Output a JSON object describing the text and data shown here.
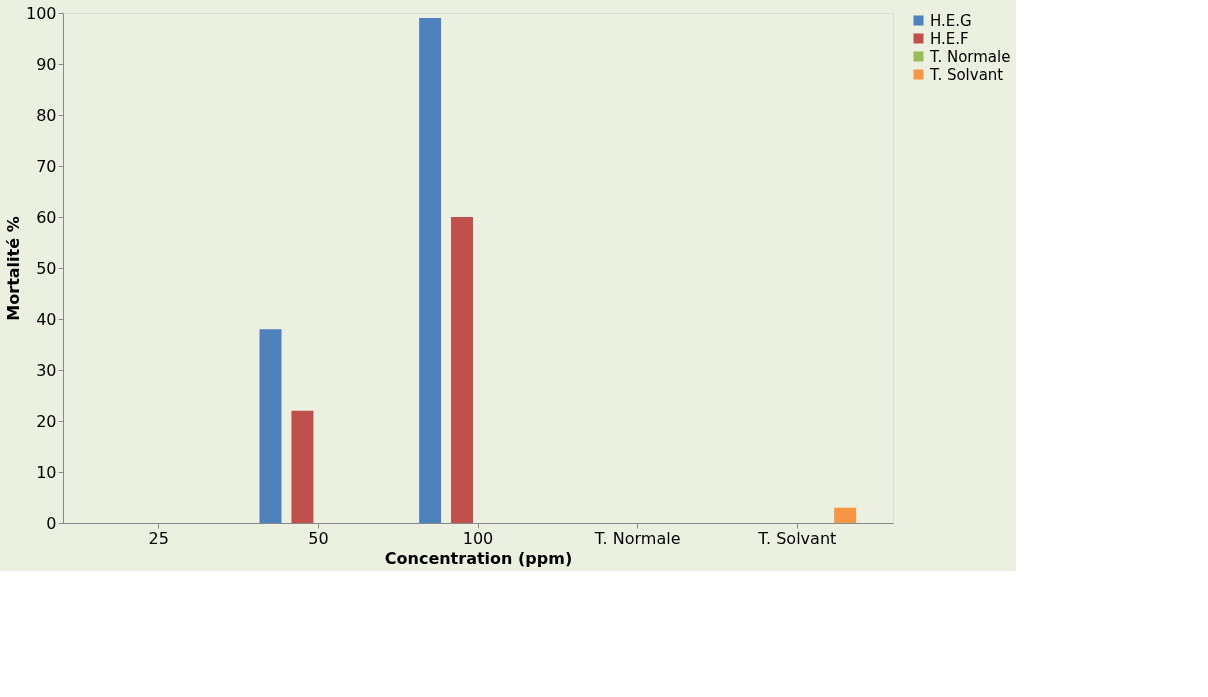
{
  "chart_data": {
    "type": "bar",
    "xlabel": "Concentration (ppm)",
    "ylabel": "Mortalité %",
    "categories": [
      "25",
      "50",
      "100",
      "T. Normale",
      "T. Solvant"
    ],
    "series": [
      {
        "name": "H.E.G",
        "color": "#4f81bd",
        "values": [
          0,
          38,
          99,
          null,
          null
        ]
      },
      {
        "name": "H.E.F",
        "color": "#c0504d",
        "values": [
          0,
          22,
          60,
          null,
          null
        ]
      },
      {
        "name": "T. Normale",
        "color": "#9bbb59",
        "values": [
          null,
          null,
          null,
          0,
          null
        ]
      },
      {
        "name": "T. Solvant",
        "color": "#f79646",
        "values": [
          null,
          null,
          null,
          null,
          3
        ]
      }
    ],
    "ylim": [
      0,
      100
    ],
    "yticks": [
      0,
      10,
      20,
      30,
      40,
      50,
      60,
      70,
      80,
      90,
      100
    ],
    "grid": false,
    "legend": "right"
  }
}
